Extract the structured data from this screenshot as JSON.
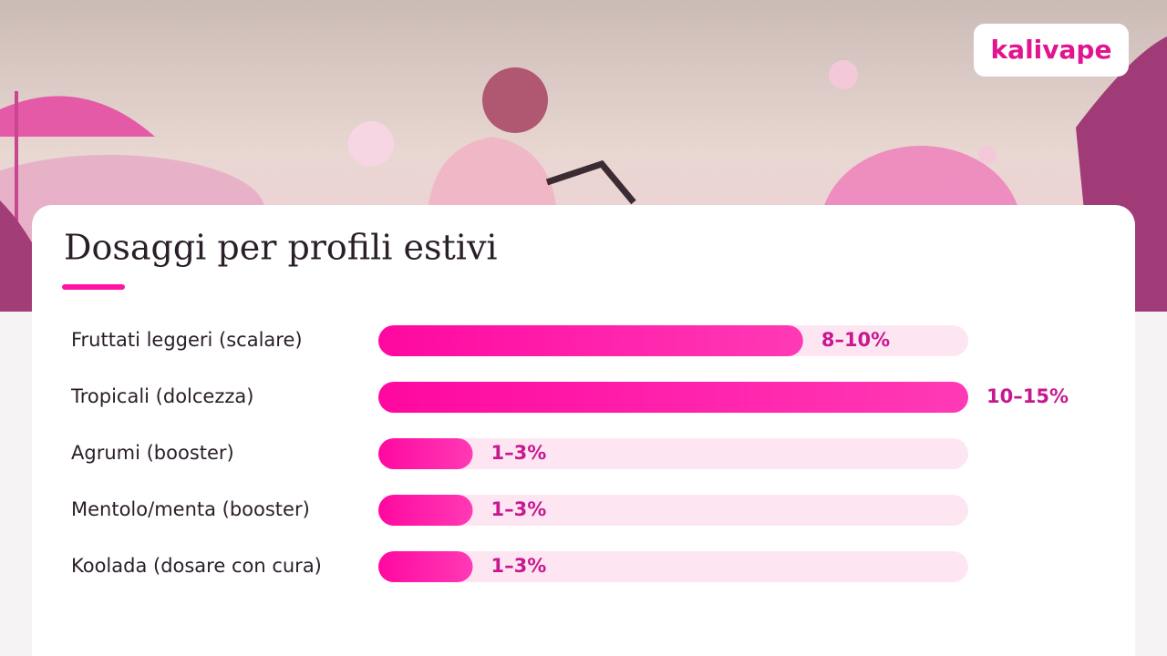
{
  "logo": "kalivape",
  "chart_data": {
    "type": "hbar",
    "title": "Dosaggi per profili estivi",
    "categories": [
      "Fruttati leggeri (scalare)",
      "Tropicali (dolcezza)",
      "Agrumi (booster)",
      "Mentolo/menta (booster)",
      "Koolada (dosare con cura)"
    ],
    "values": [
      9,
      12.5,
      2,
      2,
      2
    ],
    "value_labels": [
      "8–10%",
      "10–15%",
      "1–3%",
      "1–3%",
      "1–3%"
    ],
    "xlim": [
      0,
      12.5
    ],
    "color": "#ff14a6",
    "track_color": "#fde6f2",
    "label_color": "#c81890"
  }
}
